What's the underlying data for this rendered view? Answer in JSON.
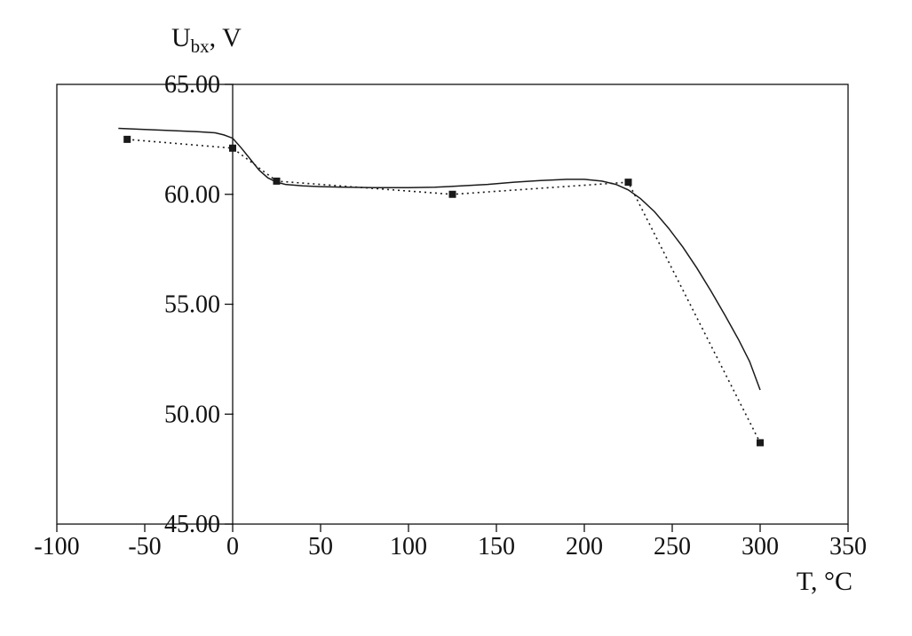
{
  "chart_data": {
    "type": "line",
    "title": "",
    "y_axis_title": {
      "main": "U",
      "sub": "bx",
      "rest": ", V"
    },
    "x_axis_title": "T, °C",
    "x_range": [
      -100,
      350
    ],
    "y_range": [
      45,
      65
    ],
    "grid": false,
    "legend": "none",
    "axis_color": "#111111",
    "line_color": "#1a1a1a",
    "x_ticks": [
      {
        "value": -100,
        "label": "-100"
      },
      {
        "value": -50,
        "label": "-50"
      },
      {
        "value": 0,
        "label": "0"
      },
      {
        "value": 50,
        "label": "50"
      },
      {
        "value": 100,
        "label": "100"
      },
      {
        "value": 150,
        "label": "150"
      },
      {
        "value": 200,
        "label": "200"
      },
      {
        "value": 250,
        "label": "250"
      },
      {
        "value": 300,
        "label": "300"
      },
      {
        "value": 350,
        "label": "350"
      }
    ],
    "y_ticks": [
      {
        "value": 65,
        "label": "65.00"
      },
      {
        "value": 60,
        "label": "60.00"
      },
      {
        "value": 55,
        "label": "55.00"
      },
      {
        "value": 50,
        "label": "50.00"
      },
      {
        "value": 45,
        "label": "45.00"
      }
    ],
    "series": [
      {
        "name": "measured-points",
        "style": "dotted",
        "marker": "square",
        "points": [
          [
            -60,
            62.5
          ],
          [
            0,
            62.1
          ],
          [
            25,
            60.6
          ],
          [
            125,
            60.0
          ],
          [
            225,
            60.55
          ],
          [
            300,
            48.7
          ]
        ]
      },
      {
        "name": "fitted-curve",
        "style": "solid",
        "marker": "none",
        "points": [
          [
            -65,
            63.0
          ],
          [
            -50,
            62.95
          ],
          [
            -35,
            62.9
          ],
          [
            -20,
            62.85
          ],
          [
            -10,
            62.8
          ],
          [
            -5,
            62.7
          ],
          [
            0,
            62.55
          ],
          [
            5,
            62.1
          ],
          [
            10,
            61.6
          ],
          [
            15,
            61.1
          ],
          [
            20,
            60.75
          ],
          [
            25,
            60.55
          ],
          [
            30,
            60.45
          ],
          [
            40,
            60.38
          ],
          [
            50,
            60.35
          ],
          [
            65,
            60.32
          ],
          [
            80,
            60.3
          ],
          [
            100,
            60.3
          ],
          [
            115,
            60.32
          ],
          [
            130,
            60.38
          ],
          [
            145,
            60.45
          ],
          [
            160,
            60.55
          ],
          [
            175,
            60.63
          ],
          [
            190,
            60.68
          ],
          [
            200,
            60.68
          ],
          [
            210,
            60.6
          ],
          [
            218,
            60.45
          ],
          [
            225,
            60.2
          ],
          [
            232,
            59.8
          ],
          [
            240,
            59.2
          ],
          [
            248,
            58.45
          ],
          [
            256,
            57.6
          ],
          [
            264,
            56.65
          ],
          [
            272,
            55.6
          ],
          [
            280,
            54.5
          ],
          [
            288,
            53.35
          ],
          [
            294,
            52.4
          ],
          [
            300,
            51.1
          ]
        ]
      }
    ]
  }
}
